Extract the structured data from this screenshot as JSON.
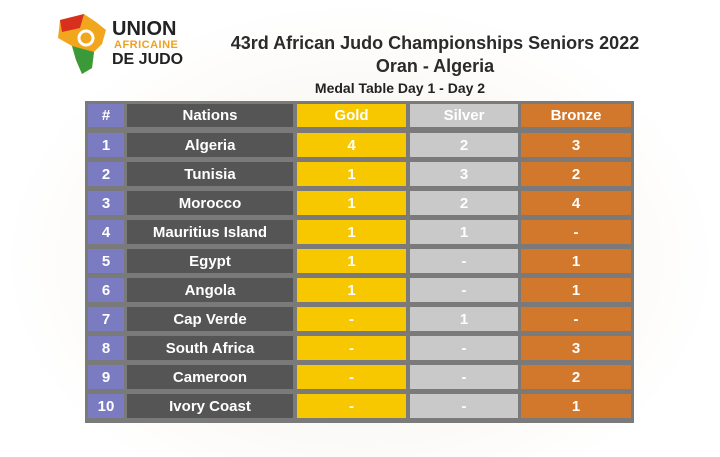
{
  "logo": {
    "line1": "UNION",
    "line2": "AFRICAINE",
    "line3": "DE JUDO"
  },
  "header": {
    "title": "43rd African Judo Championships Seniors 2022",
    "subtitle": "Oran - Algeria",
    "table_title": "Medal Table Day 1 - Day 2"
  },
  "table": {
    "columns": [
      "#",
      "Nations",
      "Gold",
      "Silver",
      "Bronze"
    ],
    "rows": [
      [
        1,
        "Algeria",
        4,
        2,
        3
      ],
      [
        2,
        "Tunisia",
        1,
        3,
        2
      ],
      [
        3,
        "Morocco",
        1,
        2,
        4
      ],
      [
        4,
        "Mauritius Island",
        1,
        1,
        "-"
      ],
      [
        5,
        "Egypt",
        1,
        "-",
        1
      ],
      [
        6,
        "Angola",
        1,
        "-",
        1
      ],
      [
        7,
        "Cap Verde",
        "-",
        1,
        "-"
      ],
      [
        8,
        "South Africa",
        "-",
        "-",
        3
      ],
      [
        9,
        "Cameroon",
        "-",
        "-",
        2
      ],
      [
        10,
        "Ivory Coast",
        "-",
        "-",
        1
      ]
    ]
  }
}
